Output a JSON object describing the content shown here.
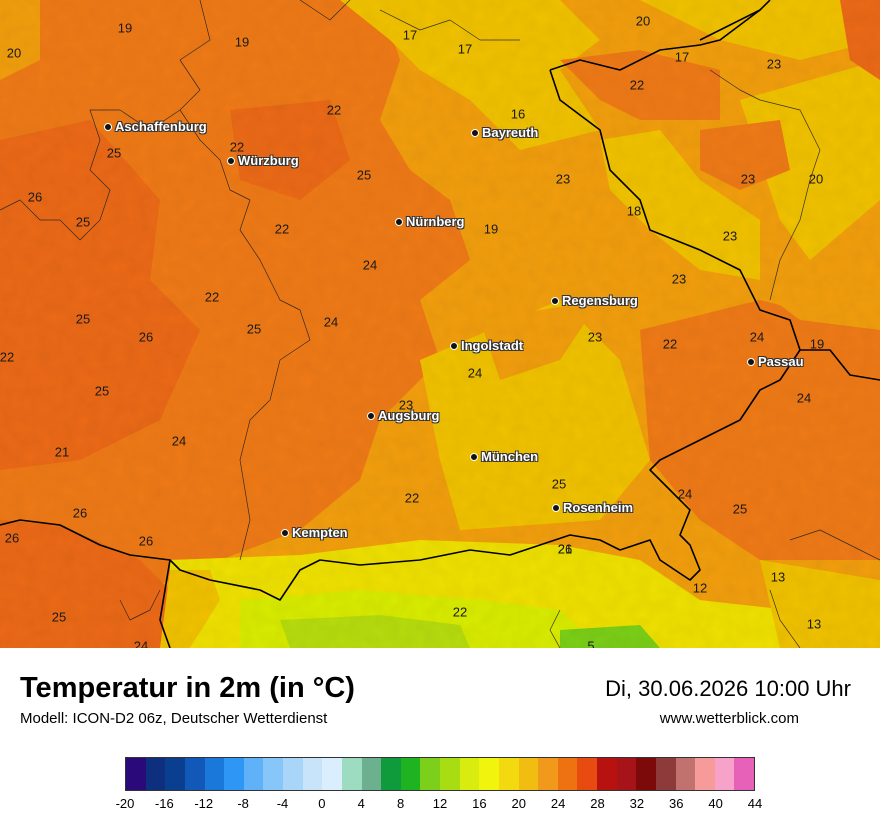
{
  "map": {
    "cities": [
      {
        "name": "Aschaffenburg"
      },
      {
        "name": "Würzburg"
      },
      {
        "name": "Bayreuth"
      },
      {
        "name": "Nürnberg"
      },
      {
        "name": "Regensburg"
      },
      {
        "name": "Ingolstadt"
      },
      {
        "name": "Passau"
      },
      {
        "name": "Augsburg"
      },
      {
        "name": "München"
      },
      {
        "name": "Rosenheim"
      },
      {
        "name": "Kempten"
      }
    ],
    "temperature_labels": [
      "19",
      "19",
      "20",
      "17",
      "17",
      "20",
      "17",
      "23",
      "22",
      "16",
      "22",
      "22",
      "25",
      "25",
      "26",
      "25",
      "23",
      "23",
      "20",
      "18",
      "22",
      "19",
      "23",
      "24",
      "23",
      "22",
      "25",
      "26",
      "24",
      "23",
      "22",
      "24",
      "25",
      "19",
      "24",
      "24",
      "23",
      "25",
      "24",
      "21",
      "25",
      "22",
      "22",
      "24",
      "26",
      "26",
      "26",
      "24",
      "25",
      "21",
      "12",
      "13",
      "25",
      "22",
      "13",
      "26",
      "5"
    ],
    "colors": {
      "cold": "#f29f13",
      "warm": "#ef7a1a",
      "hot": "#eb6a1b",
      "mild": "#f1c20f",
      "cool": "#efe10f",
      "alpine": "#b7dd14"
    }
  },
  "footer": {
    "title": "Temperatur in 2m (in °C)",
    "subtitle": "Modell: ICON-D2 06z, Deutscher Wetterdienst",
    "datetime": "Di, 30.06.2026 10:00 Uhr",
    "website": "www.wetterblick.com"
  },
  "legend": {
    "colors": [
      "#2a0a7a",
      "#0d2f7e",
      "#0a3f8f",
      "#1158b8",
      "#1b78db",
      "#2e96f5",
      "#5fb2f7",
      "#86c6f8",
      "#a9d6f8",
      "#c8e4fb",
      "#dbeefe",
      "#9edcc2",
      "#6db08f",
      "#0f9a3c",
      "#1fb322",
      "#7ccf1a",
      "#a8dd14",
      "#d9ec0f",
      "#f1f40d",
      "#f3d90f",
      "#f1bd10",
      "#f0991a",
      "#ee7212",
      "#e84b0f",
      "#b7120f",
      "#a6141a",
      "#7c0a0a",
      "#8f3a3a",
      "#c1726f",
      "#f69a9a",
      "#f7a2c8",
      "#e861b9"
    ],
    "tick_values": [
      "-20",
      "-16",
      "-12",
      "-8",
      "-4",
      "0",
      "4",
      "8",
      "12",
      "16",
      "20",
      "24",
      "28",
      "32",
      "36",
      "40",
      "44"
    ]
  }
}
